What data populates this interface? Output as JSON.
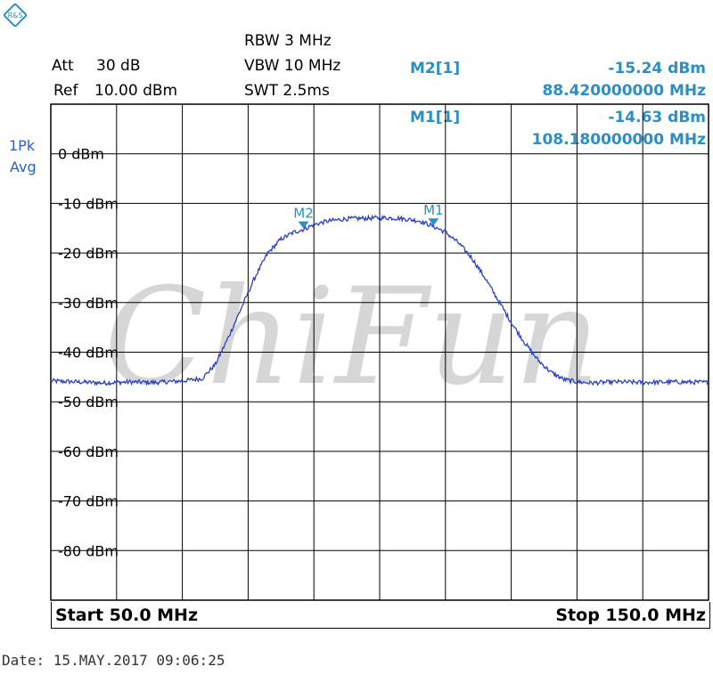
{
  "instrument": {
    "logo_text": "R&S",
    "settings": {
      "att_label": "Att",
      "att_value": "30 dB",
      "ref_label": "Ref",
      "ref_value": "10.00 dBm",
      "rbw": "RBW 3 MHz",
      "vbw": "VBW 10 MHz",
      "swt": "SWT 2.5ms"
    },
    "trace_mode": {
      "detector": "1Pk",
      "mode": "Avg"
    },
    "watermark": "ChiFun",
    "start": "Start 50.0 MHz",
    "stop": "Stop 150.0 MHz",
    "date": "Date: 15.MAY.2017  09:06:25"
  },
  "colors": {
    "trace": "#2b3fc4",
    "marker": "#2b8fc4",
    "grid": "#000000",
    "watermark": "#c8c8c8"
  },
  "chart_data": {
    "type": "line",
    "xlabel": "",
    "ylabel": "",
    "xlim": [
      50,
      150
    ],
    "ylim": [
      -90,
      10
    ],
    "grid": true,
    "x_ticks": [],
    "y_tick_labels": [
      "0 dBm",
      "-10 dBm",
      "-20 dBm",
      "-30 dBm",
      "-40 dBm",
      "-50 dBm",
      "-60 dBm",
      "-70 dBm",
      "-80 dBm"
    ],
    "y_tick_values": [
      0,
      -10,
      -20,
      -30,
      -40,
      -50,
      -60,
      -70,
      -80
    ],
    "series": [
      {
        "x": [
          50,
          54,
          58,
          62,
          66,
          70,
          73,
          75,
          77,
          79,
          81,
          83,
          85,
          87,
          88.42,
          90,
          92,
          95,
          98,
          100,
          103,
          106,
          108.18,
          110,
          112,
          114,
          116,
          118,
          120,
          122,
          124,
          126,
          128,
          130,
          132,
          136,
          140,
          145,
          150
        ],
        "y": [
          -45.8,
          -46.0,
          -46.2,
          -46.0,
          -46.1,
          -45.8,
          -45.3,
          -42.5,
          -37.0,
          -31.0,
          -25.0,
          -20.0,
          -17.2,
          -15.8,
          -15.24,
          -14.3,
          -13.6,
          -13.1,
          -13.0,
          -12.9,
          -13.0,
          -13.5,
          -14.63,
          -15.8,
          -18.0,
          -21.0,
          -25.0,
          -29.5,
          -34.0,
          -38.0,
          -41.5,
          -44.0,
          -45.5,
          -46.0,
          -46.2,
          -46.0,
          -46.1,
          -46.0,
          -46.1
        ]
      }
    ],
    "markers": [
      {
        "name": "M1",
        "label": "M1[1]",
        "x": 108.18,
        "y": -14.63,
        "value_text": "-14.63 dBm",
        "freq_text": "108.180000000 MHz"
      },
      {
        "name": "M2",
        "label": "M2[1]",
        "x": 88.42,
        "y": -15.24,
        "value_text": "-15.24 dBm",
        "freq_text": "88.420000000 MHz"
      }
    ]
  }
}
